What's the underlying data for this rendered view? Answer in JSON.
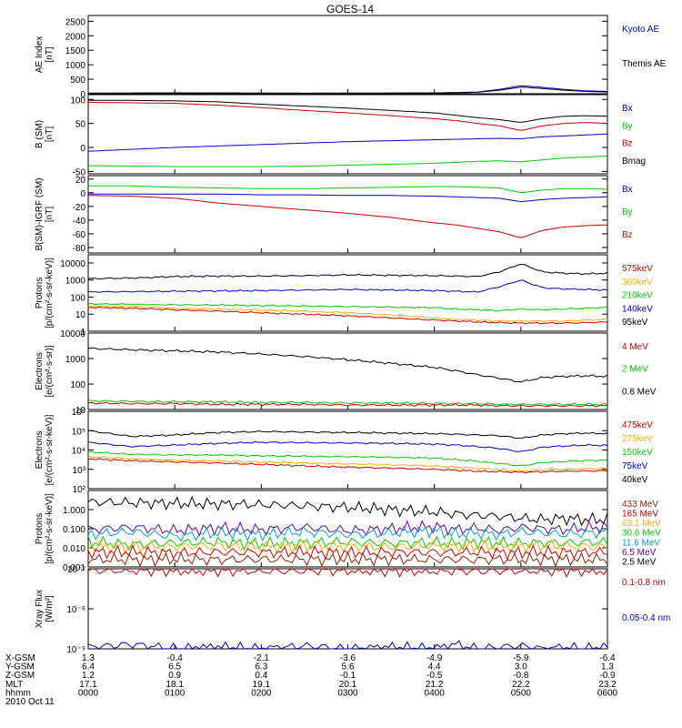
{
  "title": "GOES-14",
  "colors": {
    "black": "#000000",
    "blue": "#0000cc",
    "red": "#cc0000",
    "green": "#00cc00",
    "orange": "#ffaa00",
    "cyan": "#00a0d0",
    "purple": "#660099",
    "navy": "#000080",
    "brown": "#8b2500"
  },
  "panels": [
    {
      "id": "ae",
      "ylabel": [
        "AE Index",
        "[nT]"
      ],
      "scale": "linear",
      "ylim": [
        0,
        2700
      ],
      "ticks": [
        [
          0,
          "0"
        ],
        [
          500,
          "500"
        ],
        [
          1000,
          "1000"
        ],
        [
          1500,
          "1500"
        ],
        [
          2000,
          "2000"
        ],
        [
          2500,
          "2500"
        ]
      ],
      "legend": [
        {
          "text": "Kyoto AE",
          "color": "#0000cc"
        },
        {
          "text": "Themis AE",
          "color": "#000000"
        }
      ]
    },
    {
      "id": "bsm",
      "ylabel": [
        "B (SM)",
        "[nT]"
      ],
      "scale": "linear",
      "ylim": [
        -55,
        110
      ],
      "ticks": [
        [
          -50,
          "-50"
        ],
        [
          0,
          "0"
        ],
        [
          50,
          "50"
        ],
        [
          100,
          "100"
        ]
      ],
      "legend": [
        {
          "text": "Bx",
          "color": "#0000cc"
        },
        {
          "text": "By",
          "color": "#00cc00"
        },
        {
          "text": "Bz",
          "color": "#cc0000"
        },
        {
          "text": "Bmag",
          "color": "#000000"
        }
      ]
    },
    {
      "id": "bigrf",
      "ylabel": [
        "B(SM)-IGRF (SM)",
        "[nT]"
      ],
      "scale": "linear",
      "ylim": [
        -88,
        25
      ],
      "ticks": [
        [
          -80,
          "-80"
        ],
        [
          -60,
          "-60"
        ],
        [
          -40,
          "-40"
        ],
        [
          -20,
          "-20"
        ],
        [
          0,
          "0"
        ],
        [
          20,
          "20"
        ]
      ],
      "legend": [
        {
          "text": "Bx",
          "color": "#0000cc"
        },
        {
          "text": "By",
          "color": "#00cc00"
        },
        {
          "text": "Bz",
          "color": "#cc0000"
        }
      ]
    },
    {
      "id": "protons1",
      "ylabel": [
        "Protons",
        "[p/(cm²-s-sr-keV)]"
      ],
      "scale": "log",
      "ylim": [
        1,
        30000
      ],
      "ticks": [
        [
          1,
          "1"
        ],
        [
          10,
          "10"
        ],
        [
          100,
          "100"
        ],
        [
          1000,
          "1000"
        ],
        [
          10000,
          "10000"
        ]
      ],
      "legend": [
        {
          "text": "575keV",
          "color": "#cc0000"
        },
        {
          "text": "300keV",
          "color": "#ffaa00"
        },
        {
          "text": "210keV",
          "color": "#00cc00"
        },
        {
          "text": "140keV",
          "color": "#0000cc"
        },
        {
          "text": "95keV",
          "color": "#000000"
        }
      ]
    },
    {
      "id": "electrons1",
      "ylabel": [
        "Electrons",
        "[e/(cm²-s-sr)]"
      ],
      "scale": "log",
      "ylim": [
        10,
        10000
      ],
      "ticks": [
        [
          10,
          "10"
        ],
        [
          100,
          "100"
        ],
        [
          1000,
          "1000"
        ],
        [
          10000,
          "10000"
        ]
      ],
      "legend": [
        {
          "text": "4 MeV",
          "color": "#cc0000"
        },
        {
          "text": "2 MeV",
          "color": "#00cc00"
        },
        {
          "text": "0.6 MeV",
          "color": "#000000"
        }
      ]
    },
    {
      "id": "electrons2",
      "ylabel": [
        "Electrons",
        "[e/(cm²-s-sr-keV)]"
      ],
      "scale": "log",
      "ylim": [
        100,
        1000000
      ],
      "ticks": [
        [
          100,
          "10²"
        ],
        [
          1000,
          "10³"
        ],
        [
          10000,
          "10⁴"
        ],
        [
          100000,
          "10⁵"
        ],
        [
          1000000,
          "10⁶"
        ]
      ],
      "legend": [
        {
          "text": "475keV",
          "color": "#cc0000"
        },
        {
          "text": "275keV",
          "color": "#ffaa00"
        },
        {
          "text": "150keV",
          "color": "#00cc00"
        },
        {
          "text": "75keV",
          "color": "#0000cc"
        },
        {
          "text": "40keV",
          "color": "#000000"
        }
      ]
    },
    {
      "id": "protons2",
      "ylabel": [
        "Protons",
        "[p/(cm²-s-sr-keV)]"
      ],
      "scale": "log",
      "ylim": [
        0.001,
        10
      ],
      "ticks": [
        [
          0.001,
          "0.001"
        ],
        [
          0.01,
          "0.010"
        ],
        [
          0.1,
          "0.100"
        ],
        [
          1,
          "1.000"
        ]
      ],
      "legend": [
        {
          "text": "433 MeV",
          "color": "#8b2500"
        },
        {
          "text": "165 MeV",
          "color": "#cc0000"
        },
        {
          "text": "63.1 MeV",
          "color": "#ffaa00"
        },
        {
          "text": "30.6 MeV",
          "color": "#00cc00"
        },
        {
          "text": "11.6 MeV",
          "color": "#00a0d0"
        },
        {
          "text": "6.5 MeV",
          "color": "#660099"
        },
        {
          "text": "2.5 MeV",
          "color": "#000000"
        }
      ]
    },
    {
      "id": "xray",
      "ylabel": [
        "Xray Flux",
        "[W/m²]"
      ],
      "scale": "log",
      "ylim": [
        1e-09,
        1e-07
      ],
      "ticks": [
        [
          1e-09,
          "10⁻⁹"
        ],
        [
          1e-08,
          "10⁻⁸"
        ],
        [
          1e-07,
          "10⁻⁷"
        ]
      ],
      "legend": [
        {
          "text": "0.1-0.8 nm",
          "color": "#cc0000"
        },
        {
          "text": "0.05-0.4 nm",
          "color": "#0000cc"
        }
      ]
    }
  ],
  "bottom": {
    "rows": [
      {
        "label": "X-GSM",
        "values": [
          "1.3",
          "-0.4",
          "-2.1",
          "-3.6",
          "-4.9",
          "-5.9",
          "-6.4"
        ]
      },
      {
        "label": "Y-GSM",
        "values": [
          "6.4",
          "6.5",
          "6.3",
          "5.6",
          "4.4",
          "3.0",
          "1.3"
        ]
      },
      {
        "label": "Z-GSM",
        "values": [
          "1.2",
          "0.9",
          "0.4",
          "-0.1",
          "-0.5",
          "-0.8",
          "-0.9"
        ]
      },
      {
        "label": "MLT",
        "values": [
          "17.1",
          "18.1",
          "19.1",
          "20.1",
          "21.2",
          "22.2",
          "23.2"
        ]
      },
      {
        "label": "hhmm",
        "values": [
          "0000",
          "0100",
          "0200",
          "0300",
          "0400",
          "0500",
          "0600"
        ]
      }
    ],
    "date": "2010 Oct 11"
  },
  "chart_data": {
    "type": "line",
    "x_hours": [
      0,
      0.5,
      1,
      1.5,
      2,
      2.5,
      3,
      3.5,
      4,
      4.25,
      4.5,
      4.75,
      5,
      5.25,
      5.5,
      5.75,
      6
    ],
    "series": [
      {
        "panel": "ae",
        "name": "Kyoto AE",
        "color": "#0000cc",
        "values": [
          20,
          25,
          30,
          28,
          25,
          20,
          22,
          25,
          30,
          40,
          60,
          150,
          280,
          220,
          150,
          100,
          80
        ]
      },
      {
        "panel": "ae",
        "name": "Themis AE",
        "color": "#000000",
        "values": [
          15,
          20,
          25,
          20,
          18,
          15,
          18,
          20,
          25,
          35,
          50,
          120,
          230,
          180,
          120,
          80,
          60
        ]
      },
      {
        "panel": "bsm",
        "name": "Bmag",
        "color": "#000000",
        "values": [
          98,
          98,
          97,
          95,
          90,
          86,
          82,
          77,
          72,
          67,
          62,
          58,
          52,
          60,
          65,
          66,
          65
        ]
      },
      {
        "panel": "bsm",
        "name": "Bz",
        "color": "#cc0000",
        "values": [
          94,
          93,
          92,
          88,
          83,
          77,
          72,
          66,
          60,
          56,
          50,
          45,
          35,
          45,
          50,
          52,
          50
        ]
      },
      {
        "panel": "bsm",
        "name": "Bx",
        "color": "#0000cc",
        "values": [
          -8,
          -4,
          0,
          3,
          6,
          9,
          12,
          14,
          16,
          17,
          18,
          19,
          18,
          22,
          24,
          26,
          28
        ]
      },
      {
        "panel": "bsm",
        "name": "By",
        "color": "#00cc00",
        "values": [
          -38,
          -39,
          -40,
          -40,
          -40,
          -39,
          -37,
          -35,
          -33,
          -31,
          -29,
          -28,
          -30,
          -26,
          -22,
          -20,
          -18
        ]
      },
      {
        "panel": "bigrf",
        "name": "By",
        "color": "#00cc00",
        "values": [
          10,
          10,
          8,
          7,
          6,
          6,
          7,
          8,
          9,
          9,
          8,
          7,
          0,
          4,
          6,
          6,
          5
        ]
      },
      {
        "panel": "bigrf",
        "name": "Bx",
        "color": "#0000cc",
        "values": [
          -2,
          -2,
          -2,
          -2,
          -3,
          -3,
          -4,
          -4,
          -5,
          -6,
          -7,
          -8,
          -13,
          -10,
          -8,
          -7,
          -6
        ]
      },
      {
        "panel": "bigrf",
        "name": "Bz",
        "color": "#cc0000",
        "values": [
          -4,
          -5,
          -8,
          -15,
          -20,
          -25,
          -30,
          -36,
          -44,
          -47,
          -52,
          -57,
          -66,
          -55,
          -50,
          -48,
          -47
        ]
      },
      {
        "panel": "protons1",
        "name": "95keV",
        "color": "#000000",
        "values": [
          1200,
          1300,
          1600,
          1700,
          1700,
          1800,
          2000,
          1900,
          1800,
          1700,
          1600,
          3000,
          9000,
          3000,
          2500,
          2300,
          2500
        ]
      },
      {
        "panel": "protons1",
        "name": "140keV",
        "color": "#0000cc",
        "values": [
          200,
          210,
          220,
          230,
          240,
          260,
          280,
          260,
          240,
          220,
          200,
          400,
          1000,
          350,
          300,
          280,
          260
        ]
      },
      {
        "panel": "protons1",
        "name": "210keV",
        "color": "#00cc00",
        "values": [
          40,
          38,
          35,
          34,
          32,
          30,
          28,
          26,
          24,
          20,
          18,
          16,
          20,
          18,
          20,
          22,
          25
        ]
      },
      {
        "panel": "protons1",
        "name": "300keV",
        "color": "#ffaa00",
        "values": [
          30,
          28,
          22,
          20,
          17,
          15,
          12,
          9,
          6,
          5,
          4.5,
          4,
          4,
          4,
          4,
          4.5,
          5
        ]
      },
      {
        "panel": "protons1",
        "name": "575keV",
        "color": "#cc0000",
        "values": [
          25,
          22,
          18,
          15,
          12,
          10,
          8,
          6,
          4.5,
          4,
          3.5,
          3.2,
          3,
          3,
          3,
          3.2,
          3.5
        ]
      },
      {
        "panel": "electrons1",
        "name": "0.6 MeV",
        "color": "#000000",
        "values": [
          2500,
          2200,
          2000,
          1800,
          1500,
          1200,
          900,
          650,
          450,
          330,
          230,
          170,
          120,
          180,
          200,
          210,
          200
        ]
      },
      {
        "panel": "electrons1",
        "name": "2 MeV",
        "color": "#00cc00",
        "values": [
          22,
          21,
          20,
          20,
          19,
          19,
          18,
          18,
          17,
          17,
          17,
          16,
          16,
          16,
          16,
          16,
          16
        ]
      },
      {
        "panel": "electrons1",
        "name": "4 MeV",
        "color": "#cc0000",
        "values": [
          18,
          17,
          17,
          16,
          16,
          16,
          15,
          15,
          15,
          15,
          15,
          14,
          14,
          14,
          14,
          14,
          14
        ]
      },
      {
        "panel": "electrons2",
        "name": "40keV",
        "color": "#000000",
        "values": [
          100000,
          50000,
          60000,
          80000,
          90000,
          85000,
          80000,
          75000,
          70000,
          65000,
          60000,
          55000,
          40000,
          60000,
          70000,
          75000,
          70000
        ]
      },
      {
        "panel": "electrons2",
        "name": "75keV",
        "color": "#0000cc",
        "values": [
          25000,
          15000,
          18000,
          22000,
          25000,
          24000,
          23000,
          22000,
          20000,
          18000,
          15000,
          12000,
          8000,
          14000,
          16000,
          18000,
          17000
        ]
      },
      {
        "panel": "electrons2",
        "name": "150keV",
        "color": "#00cc00",
        "values": [
          8000,
          6000,
          5500,
          5500,
          5000,
          4800,
          4500,
          4200,
          3800,
          3200,
          2600,
          2000,
          1500,
          2200,
          2600,
          2800,
          3000
        ]
      },
      {
        "panel": "electrons2",
        "name": "275keV",
        "color": "#ffaa00",
        "values": [
          4500,
          3500,
          3000,
          2700,
          2400,
          2100,
          1900,
          1700,
          1500,
          1300,
          1100,
          950,
          800,
          950,
          1000,
          1050,
          1100
        ]
      },
      {
        "panel": "electrons2",
        "name": "475keV",
        "color": "#cc0000",
        "values": [
          3500,
          2800,
          2400,
          2100,
          1800,
          1500,
          1300,
          1150,
          1000,
          900,
          800,
          750,
          700,
          750,
          800,
          820,
          850
        ]
      },
      {
        "panel": "protons2",
        "name": "2.5 MeV",
        "color": "#000000",
        "values": [
          2.5,
          2.3,
          2.1,
          2,
          1.8,
          1.6,
          1.3,
          1,
          0.75,
          0.6,
          0.5,
          0.45,
          0.35,
          0.3,
          0.35,
          0.3,
          0.3
        ]
      },
      {
        "panel": "protons2",
        "name": "6.5 MeV",
        "color": "#660099",
        "values": [
          0.09,
          0.12,
          0.08,
          0.11,
          0.09,
          0.12,
          0.08,
          0.1,
          0.13,
          0.09,
          0.11,
          0.08,
          0.12,
          0.1,
          0.09,
          0.11,
          0.12
        ]
      },
      {
        "panel": "protons2",
        "name": "11.6 MeV",
        "color": "#00a0d0",
        "values": [
          0.05,
          0.07,
          0.04,
          0.06,
          0.05,
          0.07,
          0.05,
          0.06,
          0.08,
          0.05,
          0.06,
          0.05,
          0.07,
          0.06,
          0.05,
          0.06,
          0.07
        ]
      },
      {
        "panel": "protons2",
        "name": "30.6 MeV",
        "color": "#00cc00",
        "values": [
          0.02,
          0.015,
          0.018,
          0.02,
          0.016,
          0.018,
          0.02,
          0.017,
          0.019,
          0.016,
          0.02,
          0.018,
          0.017,
          0.019,
          0.018,
          0.02,
          0.019
        ]
      },
      {
        "panel": "protons2",
        "name": "63.1 MeV",
        "color": "#ffaa00",
        "values": [
          0.012,
          0.011,
          0.012,
          0.013,
          0.011,
          0.012,
          0.012,
          0.011,
          0.013,
          0.012,
          0.012,
          0.011,
          0.012,
          0.013,
          0.012,
          0.012,
          0.011
        ]
      },
      {
        "panel": "protons2",
        "name": "165 MeV",
        "color": "#cc0000",
        "values": [
          0.006,
          0.006,
          0.0055,
          0.006,
          0.0058,
          0.006,
          0.0056,
          0.006,
          0.0058,
          0.0057,
          0.006,
          0.0056,
          0.0058,
          0.006,
          0.0057,
          0.0058,
          0.006
        ]
      },
      {
        "panel": "protons2",
        "name": "433 MeV",
        "color": "#8b2500",
        "values": [
          0.0025,
          0.0024,
          0.0025,
          0.0024,
          0.0025,
          0.0024,
          0.0025,
          0.0025,
          0.0024,
          0.0025,
          0.0024,
          0.0025,
          0.0024,
          0.0025,
          0.0024,
          0.0025,
          0.0025
        ]
      },
      {
        "panel": "xray",
        "name": "0.1-0.8 nm",
        "color": "#cc0000",
        "values": [
          9e-08,
          9e-08,
          8.8e-08,
          8.8e-08,
          8.7e-08,
          8.8e-08,
          8.9e-08,
          8.8e-08,
          8.7e-08,
          8.8e-08,
          8.7e-08,
          8.8e-08,
          8.8e-08,
          8.9e-08,
          8.8e-08,
          8.8e-08,
          8.8e-08
        ]
      },
      {
        "panel": "xray",
        "name": "0.05-0.4 nm",
        "color": "#0000cc",
        "values": [
          1.1e-09,
          1.3e-09,
          1e-09,
          1.1e-09,
          1e-09,
          1.2e-09,
          1e-09,
          1.1e-09,
          1e-09,
          1.3e-09,
          1e-09,
          1.1e-09,
          1.2e-09,
          1e-09,
          1.1e-09,
          1e-09,
          1.1e-09
        ]
      }
    ]
  }
}
